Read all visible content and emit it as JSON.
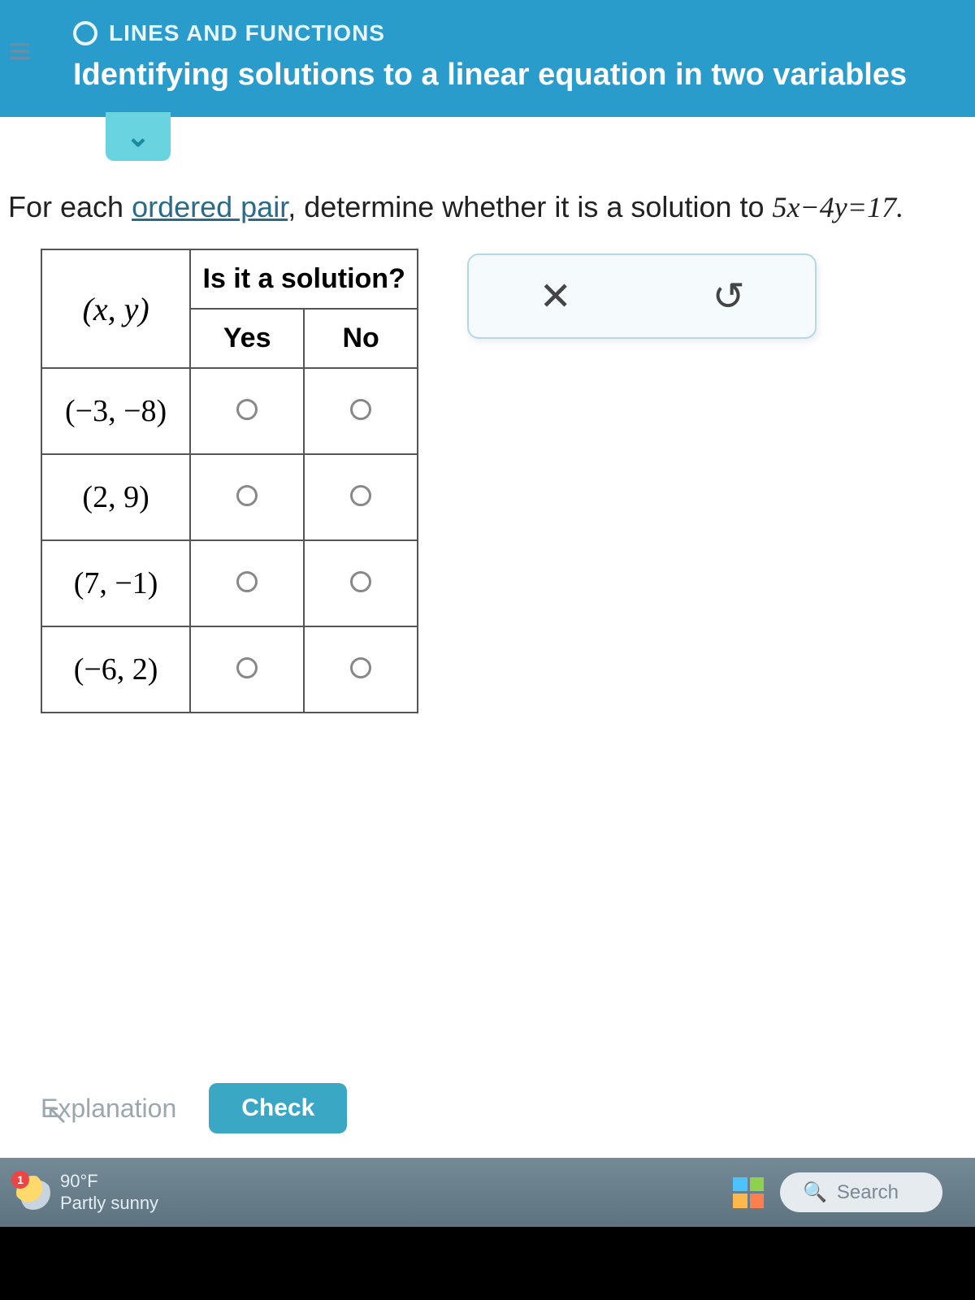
{
  "header": {
    "course": "LINES AND FUNCTIONS",
    "topic": "Identifying solutions to a linear equation in two variables"
  },
  "prompt": {
    "pre": "For each ",
    "link": "ordered pair",
    "post": ", determine whether it is a solution to ",
    "equation": "5x−4y=17."
  },
  "table": {
    "header_question": "Is it a solution?",
    "header_pair": "(x, y)",
    "col_yes": "Yes",
    "col_no": "No",
    "rows": [
      {
        "pair": "(−3, −8)"
      },
      {
        "pair": "(2, 9)"
      },
      {
        "pair": "(7, −1)"
      },
      {
        "pair": "(−6, 2)"
      }
    ]
  },
  "actions": {
    "clear_icon": "✕",
    "reset_icon": "↺"
  },
  "footer": {
    "explanation": "Explanation",
    "check": "Check"
  },
  "taskbar": {
    "temp": "90°F",
    "condition": "Partly sunny",
    "badge": "1",
    "search": "Search"
  },
  "colors": {
    "header_bg": "#2a9ccc",
    "tab_bg": "#6ad3e0",
    "check_bg": "#3aa8c4",
    "border": "#555555",
    "action_bg": "#f5fafc",
    "action_border": "#b5d8e8"
  }
}
